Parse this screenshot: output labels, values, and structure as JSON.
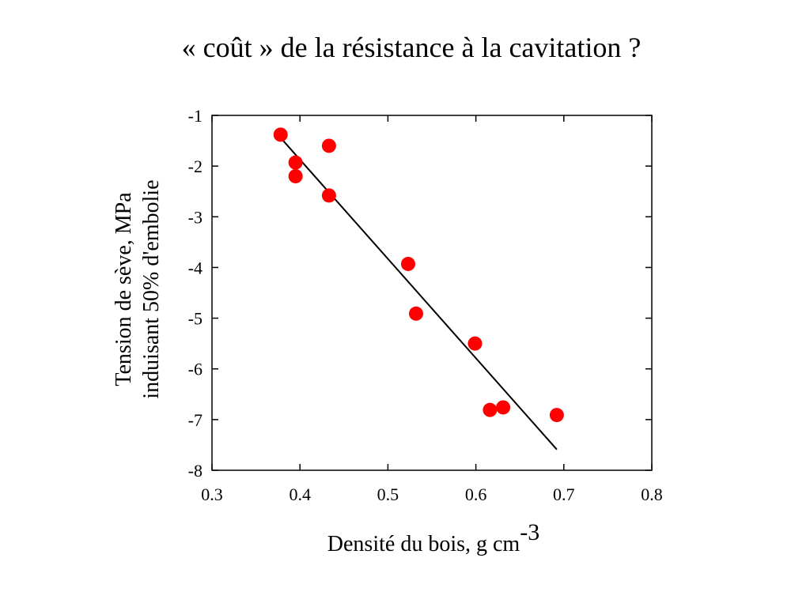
{
  "title": "« coût » de la résistance à la cavitation ?",
  "chart_data": {
    "type": "scatter",
    "xlabel": "Densité du bois, g cm",
    "xlabel_superscript": "-3",
    "ylabel_lines": [
      "Tension de sève, MPa",
      "induisant 50% d'embolie"
    ],
    "xlim": [
      0.3,
      0.8
    ],
    "ylim": [
      -8,
      -1
    ],
    "xticks": [
      0.3,
      0.4,
      0.5,
      0.6,
      0.7,
      0.8
    ],
    "xtick_labels": [
      "0.3",
      "0.4",
      "0.5",
      "0.6",
      "0.7",
      "0.8"
    ],
    "yticks": [
      -1,
      -2,
      -3,
      -4,
      -5,
      -6,
      -7,
      -8
    ],
    "ytick_labels": [
      "-1",
      "-2",
      "-3",
      "-4",
      "-5",
      "-6",
      "-7",
      "-8"
    ],
    "grid": false,
    "marker_color": "#ff0000",
    "line_color": "#000000",
    "points": [
      {
        "x": 0.378,
        "y": -1.38
      },
      {
        "x": 0.395,
        "y": -1.93
      },
      {
        "x": 0.395,
        "y": -2.2
      },
      {
        "x": 0.433,
        "y": -1.6
      },
      {
        "x": 0.433,
        "y": -2.58
      },
      {
        "x": 0.523,
        "y": -3.93
      },
      {
        "x": 0.532,
        "y": -4.91
      },
      {
        "x": 0.599,
        "y": -5.5
      },
      {
        "x": 0.616,
        "y": -6.81
      },
      {
        "x": 0.631,
        "y": -6.76
      },
      {
        "x": 0.692,
        "y": -6.91
      }
    ],
    "fit_line": {
      "x": [
        0.38,
        0.692
      ],
      "y": [
        -1.48,
        -7.59
      ]
    }
  }
}
